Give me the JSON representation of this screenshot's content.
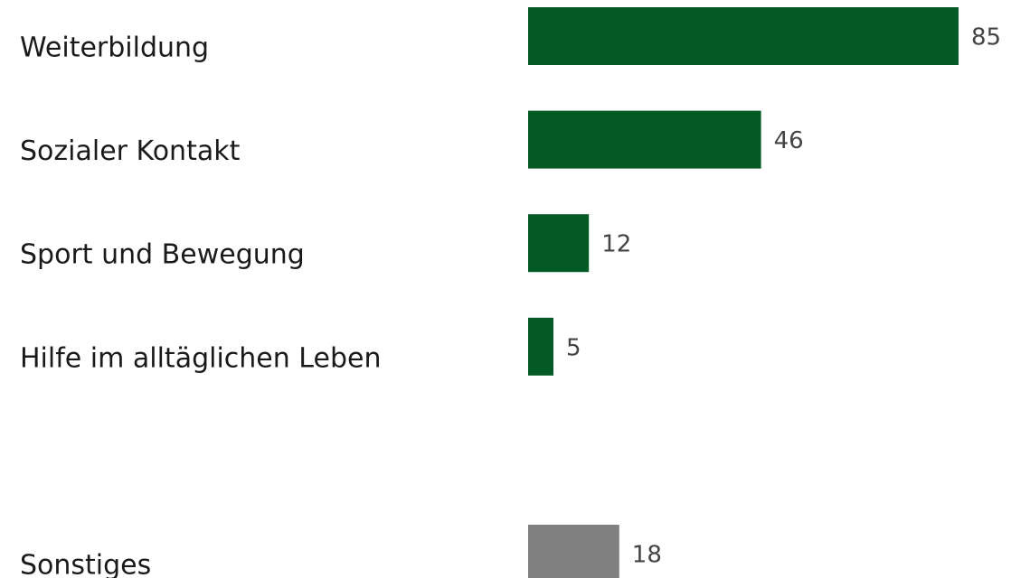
{
  "chart_data": {
    "type": "barh",
    "categories": [
      "Weiterbildung",
      "Sozialer Kontakt",
      "Sport und Bewegung",
      "Hilfe im alltäglichen Leben",
      "Sonstiges"
    ],
    "values": [
      85,
      46,
      12,
      5,
      18
    ],
    "colors": [
      "#035a25",
      "#035a25",
      "#035a25",
      "#035a25",
      "#808080"
    ]
  }
}
